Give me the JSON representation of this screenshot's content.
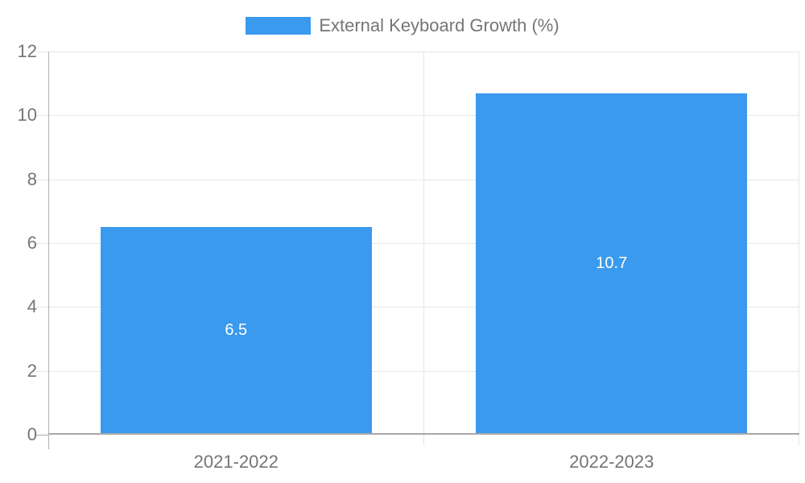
{
  "chart_data": {
    "type": "bar",
    "title": "",
    "legend_label": "External Keyboard Growth (%)",
    "legend_position": "top",
    "categories": [
      "2021-2022",
      "2022-2023"
    ],
    "values": [
      6.5,
      10.7
    ],
    "value_labels": [
      "6.5",
      "10.7"
    ],
    "xlabel": "",
    "ylabel": "",
    "ylim": [
      0,
      12
    ],
    "yticks": [
      0,
      2,
      4,
      6,
      8,
      10,
      12
    ],
    "grid": true
  },
  "style": {
    "bar_color": "#3A9AED",
    "value_label_color": "#ffffff",
    "tick_label_color": "#757575",
    "grid_color": "#e6e6e6",
    "axis_line_color": "#b2b2b2",
    "baseline_color": "#a8a8a8",
    "background": "#ffffff"
  }
}
